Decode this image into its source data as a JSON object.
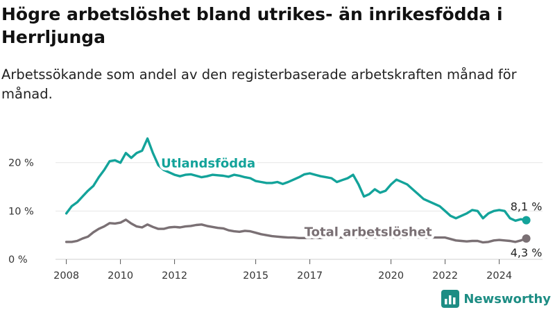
{
  "header": {
    "title": "Högre arbetslöshet bland utrikes- än inrikesfödda i Herrljunga",
    "subtitle": "Arbetssökande som andel av den registerbaserade arbetskraften månad för månad."
  },
  "brand": {
    "name": "Newsworthy",
    "logo_icon": "bar-chart-icon",
    "color": "#1d8d84"
  },
  "chart_data": {
    "type": "line",
    "title": "Högre arbetslöshet bland utrikes- än inrikesfödda i Herrljunga",
    "subtitle": "Arbetssökande som andel av den registerbaserade arbetskraften månad för månad.",
    "xlabel": "",
    "ylabel": "",
    "ylim": [
      0,
      30
    ],
    "xlim": [
      2007.6,
      2025.6
    ],
    "grid": true,
    "x_ticks": [
      2008,
      2010,
      2012,
      2015,
      2017,
      2020,
      2022,
      2024
    ],
    "y_ticks": [
      {
        "value": 0,
        "label": "0 %"
      },
      {
        "value": 10,
        "label": "10 %"
      },
      {
        "value": 20,
        "label": "20 %"
      }
    ],
    "series": [
      {
        "name": "Utlandsfödda",
        "color": "#13a39a",
        "x": [
          2008.0,
          2008.2,
          2008.4,
          2008.6,
          2008.8,
          2009.0,
          2009.2,
          2009.4,
          2009.6,
          2009.8,
          2010.0,
          2010.2,
          2010.4,
          2010.6,
          2010.8,
          2011.0,
          2011.2,
          2011.4,
          2011.6,
          2011.8,
          2012.0,
          2012.2,
          2012.4,
          2012.6,
          2012.8,
          2013.0,
          2013.2,
          2013.4,
          2013.6,
          2013.8,
          2014.0,
          2014.2,
          2014.4,
          2014.6,
          2014.8,
          2015.0,
          2015.2,
          2015.4,
          2015.6,
          2015.8,
          2016.0,
          2016.2,
          2016.4,
          2016.6,
          2016.8,
          2017.0,
          2017.2,
          2017.4,
          2017.6,
          2017.8,
          2018.0,
          2018.2,
          2018.4,
          2018.6,
          2018.8,
          2019.0,
          2019.2,
          2019.4,
          2019.6,
          2019.8,
          2020.0,
          2020.2,
          2020.4,
          2020.6,
          2020.8,
          2021.0,
          2021.2,
          2021.4,
          2021.6,
          2021.8,
          2022.0,
          2022.2,
          2022.4,
          2022.6,
          2022.8,
          2023.0,
          2023.2,
          2023.4,
          2023.6,
          2023.8,
          2024.0,
          2024.2,
          2024.4,
          2024.6,
          2024.8,
          2025.0
        ],
        "y": [
          9.5,
          11,
          11.8,
          13,
          14.2,
          15.2,
          17,
          18.5,
          20.3,
          20.5,
          20,
          22,
          21,
          22,
          22.5,
          25,
          22,
          19.5,
          18.5,
          18,
          17.5,
          17.2,
          17.5,
          17.6,
          17.3,
          17.0,
          17.2,
          17.5,
          17.4,
          17.3,
          17.1,
          17.5,
          17.3,
          17.0,
          16.8,
          16.2,
          16.0,
          15.8,
          15.8,
          16.0,
          15.6,
          16.0,
          16.5,
          17,
          17.6,
          17.8,
          17.5,
          17.2,
          17.0,
          16.8,
          16.0,
          16.4,
          16.8,
          17.5,
          15.5,
          13.0,
          13.5,
          14.5,
          13.8,
          14.2,
          15.5,
          16.5,
          16.0,
          15.5,
          14.5,
          13.5,
          12.5,
          12.0,
          11.5,
          11.0,
          10.0,
          9.0,
          8.5,
          9.0,
          9.5,
          10.2,
          10.0,
          8.5,
          9.5,
          10.0,
          10.2,
          10.0,
          8.5,
          8.0,
          8.3,
          8.1
        ],
        "end_label": "8,1 %"
      },
      {
        "name": "Total arbetslöshet",
        "color": "#7a7074",
        "x": [
          2008.0,
          2008.2,
          2008.4,
          2008.6,
          2008.8,
          2009.0,
          2009.2,
          2009.4,
          2009.6,
          2009.8,
          2010.0,
          2010.2,
          2010.4,
          2010.6,
          2010.8,
          2011.0,
          2011.2,
          2011.4,
          2011.6,
          2011.8,
          2012.0,
          2012.2,
          2012.4,
          2012.6,
          2012.8,
          2013.0,
          2013.2,
          2013.4,
          2013.6,
          2013.8,
          2014.0,
          2014.2,
          2014.4,
          2014.6,
          2014.8,
          2015.0,
          2015.2,
          2015.4,
          2015.6,
          2015.8,
          2016.0,
          2016.2,
          2016.4,
          2016.6,
          2016.8,
          2017.0,
          2017.2,
          2017.4,
          2017.6,
          2017.8,
          2018.0,
          2018.2,
          2018.4,
          2018.6,
          2018.8,
          2019.0,
          2019.2,
          2019.4,
          2019.6,
          2019.8,
          2020.0,
          2020.2,
          2020.4,
          2020.6,
          2020.8,
          2021.0,
          2021.2,
          2021.4,
          2021.6,
          2021.8,
          2022.0,
          2022.2,
          2022.4,
          2022.6,
          2022.8,
          2023.0,
          2023.2,
          2023.4,
          2023.6,
          2023.8,
          2024.0,
          2024.2,
          2024.4,
          2024.6,
          2024.8,
          2025.0
        ],
        "y": [
          3.6,
          3.6,
          3.8,
          4.3,
          4.7,
          5.6,
          6.3,
          6.8,
          7.5,
          7.4,
          7.6,
          8.2,
          7.4,
          6.8,
          6.6,
          7.2,
          6.7,
          6.3,
          6.3,
          6.6,
          6.7,
          6.6,
          6.8,
          6.9,
          7.1,
          7.2,
          6.9,
          6.7,
          6.5,
          6.4,
          6.0,
          5.8,
          5.7,
          5.9,
          5.8,
          5.5,
          5.2,
          5.0,
          4.8,
          4.7,
          4.6,
          4.5,
          4.5,
          4.4,
          4.4,
          4.4,
          4.4,
          4.4,
          4.5,
          4.5,
          4.5,
          4.5,
          4.5,
          4.5,
          4.5,
          4.5,
          4.5,
          4.5,
          4.5,
          4.5,
          4.5,
          4.5,
          4.5,
          4.5,
          4.5,
          4.5,
          4.5,
          4.5,
          4.5,
          4.5,
          4.5,
          4.2,
          3.9,
          3.8,
          3.7,
          3.8,
          3.8,
          3.5,
          3.6,
          3.9,
          4.0,
          3.9,
          3.8,
          3.6,
          3.9,
          4.3
        ],
        "end_label": "4,3 %"
      }
    ]
  }
}
